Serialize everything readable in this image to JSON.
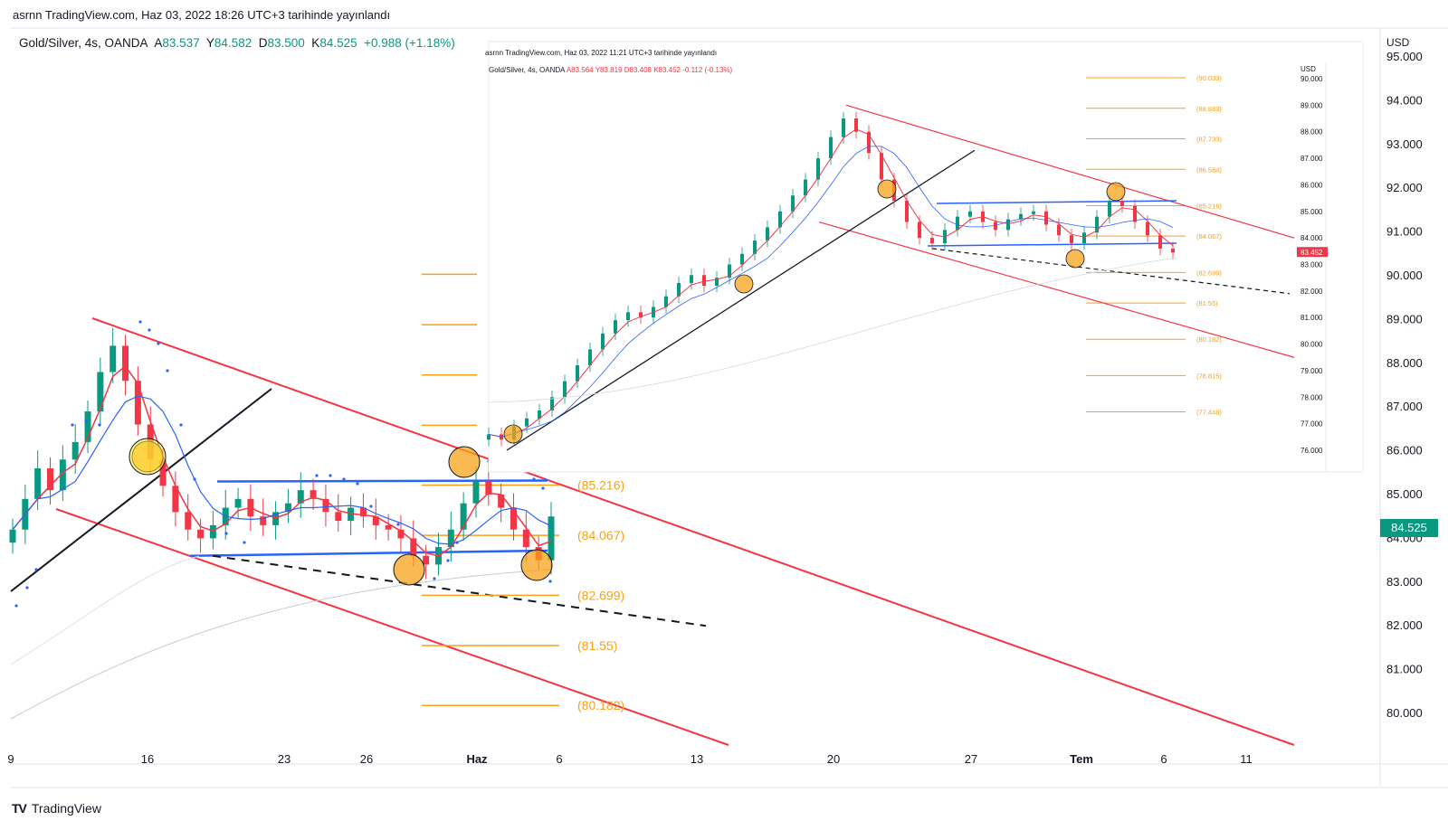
{
  "publication": "asrnn TradingView.com, Haz 03, 2022 18:26 UTC+3 tarihinde yayınlandı",
  "symbol": {
    "name": "Gold/Silver, 4s, OANDA",
    "a_label": "A",
    "a_value": "83.537",
    "y_label": "Y",
    "y_value": "84.582",
    "d_label": "D",
    "d_value": "83.500",
    "k_label": "K",
    "k_value": "84.525",
    "change": "+0.988 (+1.18%)"
  },
  "unit": "USD",
  "last_price": "84.525",
  "brand": "TradingView",
  "chart_data": [
    {
      "type": "line",
      "title": "Gold/Silver, 4s, OANDA",
      "ylabel": "USD",
      "ylim": [
        79.3,
        95.4
      ],
      "y_ticks": [
        "95.000",
        "94.000",
        "93.000",
        "92.000",
        "91.000",
        "90.000",
        "89.000",
        "88.000",
        "87.000",
        "86.000",
        "85.000",
        "84.000",
        "83.000",
        "82.000",
        "81.000",
        "80.000"
      ],
      "y_tick_values": [
        95,
        94,
        93,
        92,
        91,
        90,
        89,
        88,
        87,
        86,
        85,
        84,
        83,
        82,
        81,
        80
      ],
      "x_ticks": [
        "9",
        "16",
        "23",
        "26",
        "Haz",
        "6",
        "13",
        "20",
        "27",
        "Tem",
        "6",
        "11"
      ],
      "last_price": 84.525,
      "fib_levels": [
        {
          "label": "(85.216)",
          "value": 85.216
        },
        {
          "label": "(84.067)",
          "value": 84.067
        },
        {
          "label": "(82.699)",
          "value": 82.699
        },
        {
          "label": "(81.55)",
          "value": 81.55
        },
        {
          "label": "(80.182)",
          "value": 80.182
        }
      ],
      "close_series": [
        84.2,
        84.9,
        85.6,
        85.1,
        85.8,
        86.2,
        86.9,
        87.8,
        88.4,
        87.6,
        86.6,
        85.8,
        85.2,
        84.6,
        84.2,
        84.0,
        84.3,
        84.7,
        84.9,
        84.5,
        84.3,
        84.6,
        84.8,
        85.1,
        84.9,
        84.6,
        84.4,
        84.7,
        84.5,
        84.3,
        84.2,
        84.0,
        83.6,
        83.4,
        83.8,
        84.2,
        84.8,
        85.3,
        85.0,
        84.7,
        84.2,
        83.8,
        83.5,
        84.5
      ],
      "channel": {
        "upper": [
          [
            88.9,
            80
          ]
        ],
        "lower": [
          [
            84.2,
            79.5
          ]
        ]
      },
      "range_box": {
        "top": 85.3,
        "bottom": 83.7
      }
    },
    {
      "type": "line",
      "title": "Gold/Silver, 4s, OANDA",
      "publication": "asrnn TradingView.com, Haz 03, 2022 11:21 UTC+3 tarihinde yayınlandı",
      "legend": {
        "name": "Gold/Silver, 4s, OANDA",
        "a": "A83.564",
        "y": "Y83.819",
        "d": "D83.408",
        "k": "K83.452",
        "change": "-0.112 (-0.13%)"
      },
      "ylabel": "USD",
      "ylim": [
        75.8,
        90.4
      ],
      "y_ticks": [
        "90.000",
        "89.000",
        "88.000",
        "87.000",
        "86.000",
        "85.000",
        "84.000",
        "83.000",
        "82.000",
        "81.000",
        "80.000",
        "79.000",
        "78.000",
        "77.000",
        "76.000"
      ],
      "y_tick_values": [
        90,
        89,
        88,
        87,
        86,
        85,
        84,
        83,
        82,
        81,
        80,
        79,
        78,
        77,
        76
      ],
      "last_price": 83.452,
      "last_price_label": "83.452",
      "fib_levels": [
        {
          "label": "(90.033)",
          "value": 90.033
        },
        {
          "label": "(88.883)",
          "value": 88.883
        },
        {
          "label": "(87.733)",
          "value": 87.733
        },
        {
          "label": "(86.584)",
          "value": 86.584
        },
        {
          "label": "(85.216)",
          "value": 85.216
        },
        {
          "label": "(84.067)",
          "value": 84.067
        },
        {
          "label": "(82.699)",
          "value": 82.699
        },
        {
          "label": "(81.55)",
          "value": 81.55
        },
        {
          "label": "(80.182)",
          "value": 80.182
        },
        {
          "label": "(78.815)",
          "value": 78.815
        },
        {
          "label": "(77.448)",
          "value": 77.448
        }
      ],
      "close_series": [
        76.6,
        76.4,
        76.9,
        77.2,
        77.5,
        78.0,
        78.6,
        79.2,
        79.8,
        80.4,
        80.9,
        81.2,
        81.0,
        81.4,
        81.8,
        82.3,
        82.6,
        82.2,
        82.5,
        83.0,
        83.4,
        83.9,
        84.4,
        85.0,
        85.6,
        86.2,
        87.0,
        87.8,
        88.5,
        88.0,
        87.2,
        86.2,
        85.4,
        84.6,
        84.0,
        83.8,
        84.3,
        84.8,
        85.0,
        84.6,
        84.3,
        84.7,
        84.9,
        85.0,
        84.5,
        84.1,
        83.8,
        84.2,
        84.8,
        85.4,
        85.2,
        84.6,
        84.1,
        83.6,
        83.45
      ]
    }
  ]
}
